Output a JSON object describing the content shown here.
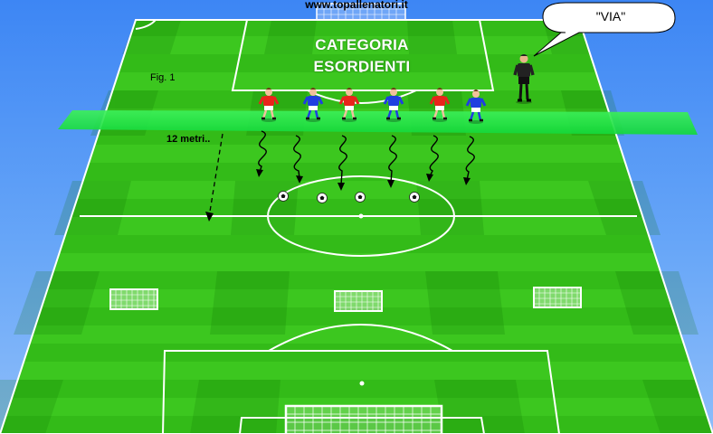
{
  "header": {
    "site": "www.topallenatori.it"
  },
  "diagram": {
    "title_line1": "CATEGORIA",
    "title_line2": "ESORDIENTI",
    "figure_label": "Fig. 1",
    "distance_label": "12 metri..",
    "speech": "\"VIA\""
  },
  "colors": {
    "pitch_light": "#3cc71f",
    "pitch_dark": "#2fb414",
    "zone_band": "#22e84a",
    "team_red": "#e8241c",
    "team_blue": "#1f3fe0",
    "referee": "#222222"
  },
  "players": [
    {
      "team": "red"
    },
    {
      "team": "blue"
    },
    {
      "team": "red"
    },
    {
      "team": "blue"
    },
    {
      "team": "red"
    },
    {
      "team": "blue"
    }
  ],
  "balls": 4,
  "mini_goals": 3
}
